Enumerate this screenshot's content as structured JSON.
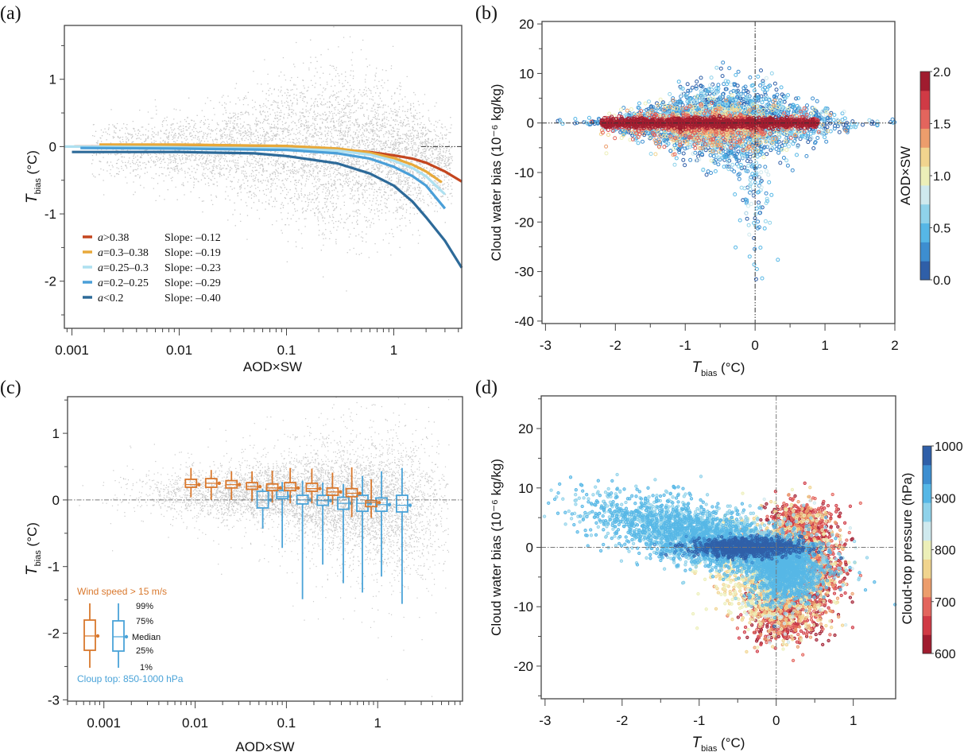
{
  "chart_data": [
    {
      "panel": "(a)",
      "type": "scatter",
      "xscale": "log",
      "xlabel": "AOD×SW",
      "ylabel": "T_bias (°C)",
      "ylabel_main": "T",
      "ylabel_sub": "bias",
      "ylabel_unit": " (°C)",
      "xlim": [
        0.00085,
        4.3
      ],
      "ylim": [
        -2.7,
        1.8
      ],
      "xticks": [
        0.001,
        0.01,
        0.1,
        1
      ],
      "xtick_labels": [
        "0.001",
        "0.01",
        "0.1",
        "1"
      ],
      "yticks": [
        -2,
        -1,
        0,
        1
      ],
      "ytick_labels": [
        "-2",
        "-1",
        "0",
        "1"
      ],
      "background_scatter": {
        "color": "#c8c8c8",
        "description": "Grey point cloud of individual samples"
      },
      "series": [
        {
          "name": "a>0.38",
          "label": "a>0.38",
          "slope_label": "Slope: –0.12",
          "color": "#c4461f",
          "x": [
            0.00105,
            0.01,
            0.1,
            0.3,
            0.6,
            1.0,
            1.5,
            2.0,
            3.0,
            4.3
          ],
          "y": [
            0.0,
            0.0,
            -0.01,
            -0.04,
            -0.08,
            -0.13,
            -0.18,
            -0.24,
            -0.37,
            -0.52
          ]
        },
        {
          "name": "a=0.3–0.38",
          "label": "a=0.3–0.38",
          "slope_label": "Slope: –0.19",
          "color": "#e8a93a",
          "x": [
            0.0018,
            0.01,
            0.1,
            0.3,
            0.6,
            1.0,
            1.5,
            2.0,
            2.8
          ],
          "y": [
            0.03,
            0.03,
            0.01,
            -0.03,
            -0.09,
            -0.17,
            -0.27,
            -0.37,
            -0.53
          ]
        },
        {
          "name": "a=0.25–0.3",
          "label": "a=0.25–0.3",
          "slope_label": "Slope: –0.23",
          "color": "#aee0f0",
          "x": [
            0.00085,
            0.01,
            0.1,
            0.3,
            0.6,
            1.0,
            1.5,
            2.0,
            3.0
          ],
          "y": [
            0.0,
            -0.01,
            -0.03,
            -0.06,
            -0.12,
            -0.21,
            -0.32,
            -0.44,
            -0.71
          ]
        },
        {
          "name": "a=0.2–0.25",
          "label": "a=0.2–0.25",
          "slope_label": "Slope: –0.29",
          "color": "#4a9fd8",
          "x": [
            0.0012,
            0.01,
            0.1,
            0.3,
            0.6,
            1.0,
            1.5,
            2.0,
            3.0
          ],
          "y": [
            -0.02,
            -0.03,
            -0.05,
            -0.1,
            -0.18,
            -0.3,
            -0.44,
            -0.58,
            -0.92
          ]
        },
        {
          "name": "a<0.2",
          "label": "a<0.2",
          "slope_label": "Slope: –0.40",
          "color": "#2d6a99",
          "x": [
            0.001,
            0.01,
            0.05,
            0.1,
            0.3,
            0.6,
            1.0,
            1.5,
            2.0,
            3.0,
            4.3
          ],
          "y": [
            -0.08,
            -0.08,
            -0.1,
            -0.14,
            -0.25,
            -0.4,
            -0.58,
            -0.82,
            -1.05,
            -1.4,
            -1.8
          ]
        }
      ]
    },
    {
      "panel": "(b)",
      "type": "scatter",
      "xlabel": "T_bias (°C)",
      "xlabel_main": "T",
      "xlabel_sub": "bias",
      "xlabel_unit": " (°C)",
      "ylabel": "Cloud water bias (10⁻⁶ kg/kg)",
      "xlim": [
        -3.05,
        2.0
      ],
      "ylim": [
        -40.5,
        20.5
      ],
      "xticks": [
        -3,
        -2,
        -1,
        0,
        1,
        2
      ],
      "xtick_labels": [
        "-3",
        "-2",
        "-1",
        "0",
        "1",
        "2"
      ],
      "yticks": [
        -40,
        -30,
        -20,
        -10,
        0,
        10,
        20
      ],
      "ytick_labels": [
        "-40",
        "-30",
        "-20",
        "-10",
        "0",
        "10",
        "20"
      ],
      "marker": "open-circle",
      "colorbar": {
        "label": "AOD×SW",
        "range": [
          0.0,
          2.0
        ],
        "ticks": [
          0.0,
          0.5,
          1.0,
          1.5,
          2.0
        ],
        "tick_labels": [
          "0.0",
          "0.5",
          "1.0",
          "1.5",
          "2.0"
        ],
        "colors_low_to_high": [
          "#2f5fa8",
          "#3d8ed0",
          "#56b7e6",
          "#8fd2ea",
          "#cfe9ee",
          "#ecefb8",
          "#f1d48e",
          "#ec9d6c",
          "#e3655d",
          "#d03a45",
          "#a01c2f"
        ]
      },
      "point_clusters": [
        {
          "description": "High AOD×SW (red) concentrated along y≈0 from x≈-2.2 to 0.9",
          "aod_sw": 1.8
        },
        {
          "description": "Low AOD×SW (blue) widely spread, y from about -36 to 15, x from -2.5 to 1.8",
          "aod_sw": 0.3
        },
        {
          "description": "Vertical tail near x≈0 reaching y≈-36",
          "aod_sw": 0.4
        }
      ]
    },
    {
      "panel": "(c)",
      "type": "scatter",
      "xscale": "log",
      "xlabel": "AOD×SW",
      "ylabel": "T_bias (°C)",
      "ylabel_main": "T",
      "ylabel_sub": "bias",
      "ylabel_unit": " (°C)",
      "xlim": [
        0.0004,
        8.5
      ],
      "ylim": [
        -3.02,
        1.55
      ],
      "xticks": [
        0.001,
        0.01,
        0.1,
        1
      ],
      "xtick_labels": [
        "0.001",
        "0.01",
        "0.1",
        "1"
      ],
      "yticks": [
        -3,
        -2,
        -1,
        0,
        1
      ],
      "ytick_labels": [
        "-3",
        "-2",
        "-1",
        "0",
        "1"
      ],
      "background_scatter": {
        "color": "#c8c8c8"
      },
      "legend": {
        "title_orange": "Wind speed > 15 m/s",
        "title_blue": "Cloup top: 850-1000 hPa",
        "labels": [
          "99%",
          "75%",
          "Median",
          "25%",
          "1%"
        ]
      },
      "boxplots": [
        {
          "name": "Wind speed > 15 m/s",
          "color": "#d9782d",
          "x": [
            0.009,
            0.015,
            0.025,
            0.042,
            0.07,
            0.11,
            0.19,
            0.32,
            0.52,
            0.85
          ],
          "p1": [
            0.04,
            0.0,
            0.0,
            -0.02,
            -0.04,
            -0.05,
            -0.05,
            -0.07,
            -0.26,
            -0.27
          ],
          "p25": [
            0.19,
            0.19,
            0.18,
            0.16,
            0.14,
            0.14,
            0.13,
            0.07,
            0.05,
            -0.1
          ],
          "median": [
            0.23,
            0.25,
            0.23,
            0.2,
            0.18,
            0.18,
            0.17,
            0.12,
            0.1,
            -0.04
          ],
          "p75": [
            0.31,
            0.32,
            0.29,
            0.26,
            0.24,
            0.26,
            0.25,
            0.18,
            0.17,
            -0.01
          ],
          "p99": [
            0.48,
            0.45,
            0.43,
            0.43,
            0.44,
            0.48,
            0.47,
            0.41,
            0.49,
            0.31
          ]
        },
        {
          "name": "Cloup top: 850-1000 hPa",
          "color": "#4aa3d8",
          "x": [
            0.055,
            0.09,
            0.15,
            0.25,
            0.42,
            0.68,
            1.1,
            1.85
          ],
          "p1": [
            -0.43,
            -0.72,
            -1.49,
            -0.97,
            -1.25,
            -1.39,
            -1.15,
            -1.56
          ],
          "p25": [
            -0.12,
            0.02,
            -0.06,
            -0.08,
            -0.14,
            -0.17,
            -0.17,
            -0.18
          ],
          "median": [
            0.0,
            0.05,
            0.0,
            -0.01,
            -0.05,
            -0.05,
            -0.07,
            -0.08
          ],
          "p75": [
            0.13,
            0.14,
            0.07,
            0.07,
            0.04,
            0.07,
            0.03,
            0.07
          ],
          "p99": [
            0.17,
            0.27,
            0.29,
            0.26,
            0.24,
            0.36,
            0.43,
            0.48
          ]
        }
      ]
    },
    {
      "panel": "(d)",
      "type": "scatter",
      "xlabel": "T_bias (°C)",
      "xlabel_main": "T",
      "xlabel_sub": "bias",
      "xlabel_unit": " (°C)",
      "ylabel": "Cloud water bias (10⁻⁶ kg/kg)",
      "xlim": [
        -3.05,
        1.55
      ],
      "ylim": [
        -25.5,
        25.5
      ],
      "xticks": [
        -3,
        -2,
        -1,
        0,
        1
      ],
      "xtick_labels": [
        "-3",
        "-2",
        "-1",
        "0",
        "1"
      ],
      "yticks": [
        -20,
        -10,
        0,
        10,
        20
      ],
      "ytick_labels": [
        "-20",
        "-10",
        "0",
        "10",
        "20"
      ],
      "marker": "circle",
      "colorbar": {
        "label": "Cloud-top pressure (hPa)",
        "range": [
          600,
          1000
        ],
        "ticks": [
          600,
          700,
          800,
          900,
          1000
        ],
        "tick_labels": [
          "600",
          "700",
          "800",
          "900",
          "1000"
        ],
        "colors_low_to_high": [
          "#a01c2f",
          "#d03a45",
          "#e3655d",
          "#ec9d6c",
          "#f1d48e",
          "#ecefb8",
          "#cfe9ee",
          "#8fd2ea",
          "#56b7e6",
          "#3d8ed0",
          "#2f5fa8"
        ]
      },
      "point_clusters": [
        {
          "description": "Low clouds (blue, ~900-1000 hPa) along y≈0 band and left-upper wedge from x≈-2.9,y≈10 to x≈0.3",
          "pressure": 920
        },
        {
          "description": "Higher clouds (red, ~600-700 hPa) forming outer envelope near x 0 to 1, y from -16 to 9",
          "pressure": 650
        }
      ]
    }
  ],
  "panel_labels": [
    "(a)",
    "(b)",
    "(c)",
    "(d)"
  ]
}
